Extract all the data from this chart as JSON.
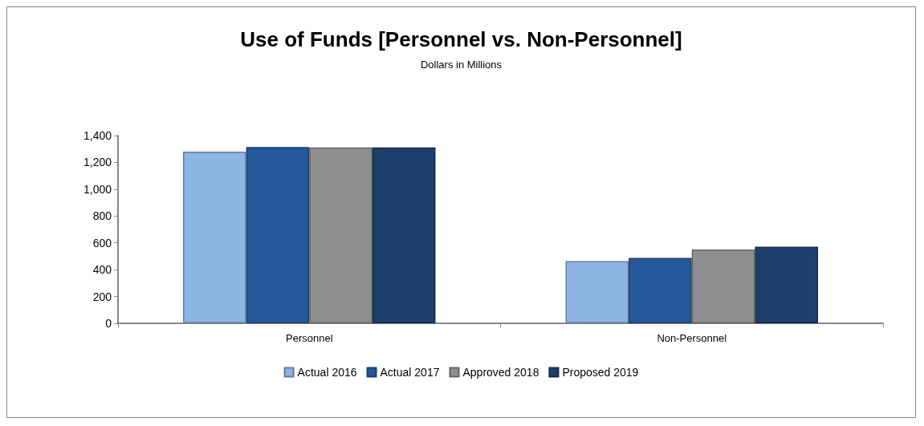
{
  "chart_data": {
    "type": "bar",
    "title": "Use of Funds [Personnel vs. Non-Personnel]",
    "subtitle": "Dollars in Millions",
    "categories": [
      "Personnel",
      "Non-Personnel"
    ],
    "series": [
      {
        "name": "Actual 2016",
        "color": "#8eb4e3",
        "values": [
          1280,
          464
        ]
      },
      {
        "name": "Actual 2017",
        "color": "#255999",
        "values": [
          1315,
          487
        ]
      },
      {
        "name": "Approved 2018",
        "color": "#8f8f8f",
        "values": [
          1312,
          550
        ]
      },
      {
        "name": "Proposed 2019",
        "color": "#1c3f6b",
        "values": [
          1312,
          571
        ]
      }
    ],
    "ylim": [
      0,
      1400
    ],
    "yticks": [
      0,
      200,
      400,
      600,
      800,
      {
        "value": 1000,
        "label": "1,000"
      },
      {
        "value": 1200,
        "label": "1,200"
      },
      {
        "value": 1400,
        "label": "1,400"
      }
    ],
    "grid": false,
    "legend": "bottom"
  }
}
